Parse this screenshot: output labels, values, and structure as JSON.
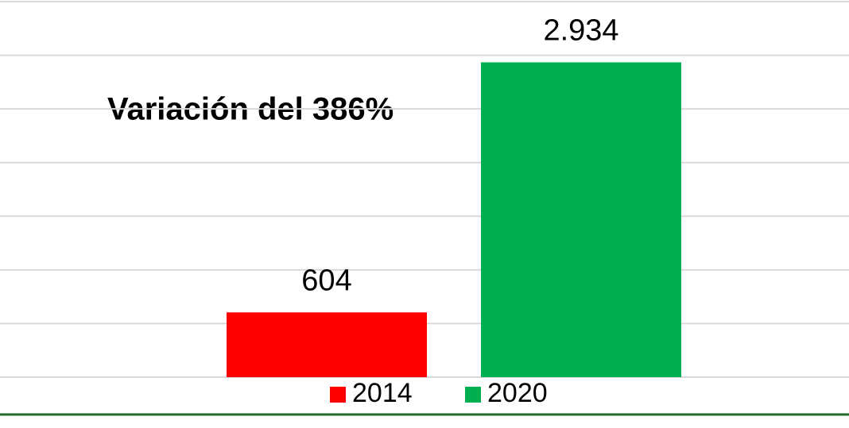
{
  "chart_data": {
    "type": "bar",
    "annotation": "Variación del 386%",
    "categories": [
      null
    ],
    "series": [
      {
        "name": "2014",
        "color": "#ff0000",
        "values": [
          604
        ],
        "value_labels": [
          "604"
        ]
      },
      {
        "name": "2020",
        "color": "#00b050",
        "values": [
          2934
        ],
        "value_labels": [
          "2.934"
        ]
      }
    ],
    "ylim": [
      0,
      3500
    ],
    "yticks": [
      0,
      500,
      1000,
      1500,
      2000,
      2500,
      3000,
      3500
    ],
    "grid": true,
    "legend": "bottom"
  }
}
